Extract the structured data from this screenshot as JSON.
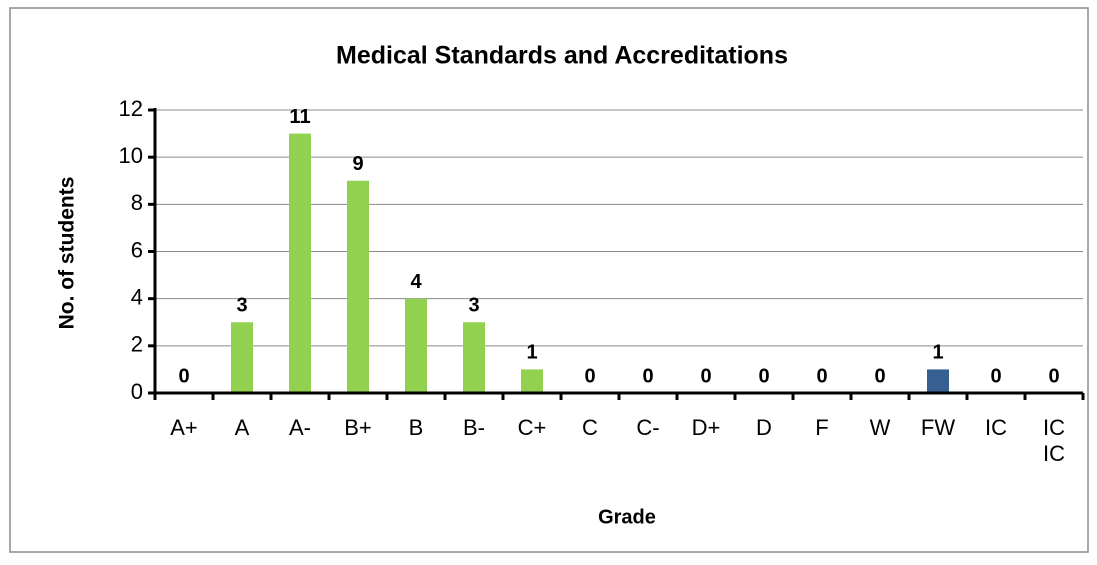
{
  "chart_data": {
    "type": "bar",
    "title": "Medical Standards and Accreditations",
    "x_label": "Grade",
    "y_label": "No. of students",
    "categories": [
      "A+",
      "A",
      "A-",
      "B+",
      "B",
      "B-",
      "C+",
      "C",
      "C-",
      "D+",
      "D",
      "F",
      "W",
      "FW",
      "IC",
      "IC IC"
    ],
    "values": [
      0,
      3,
      11,
      9,
      4,
      3,
      1,
      0,
      0,
      0,
      0,
      0,
      0,
      1,
      0,
      0
    ],
    "colors": [
      "#92d050",
      "#92d050",
      "#92d050",
      "#92d050",
      "#92d050",
      "#92d050",
      "#92d050",
      "#92d050",
      "#92d050",
      "#92d050",
      "#92d050",
      "#92d050",
      "#92d050",
      "#376092",
      "#92d050",
      "#92d050"
    ],
    "ylim": [
      0,
      12
    ],
    "yticks": [
      0,
      2,
      4,
      6,
      8,
      10,
      12
    ],
    "grid": true
  }
}
